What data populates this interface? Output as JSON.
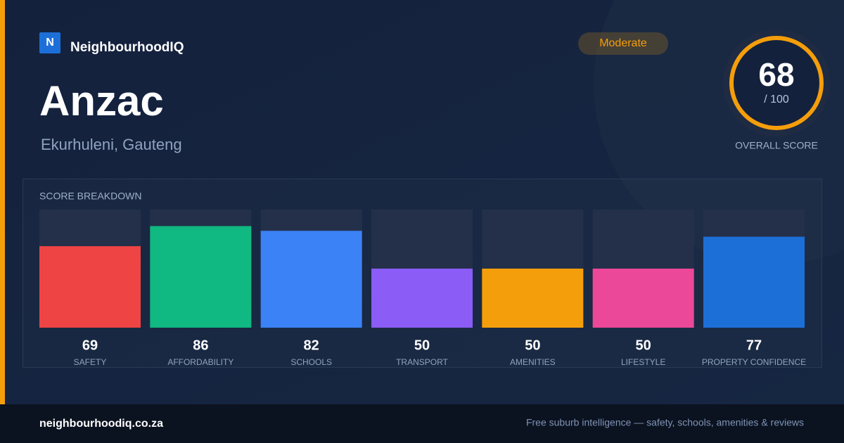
{
  "brand": {
    "logo": "N",
    "name": "NeighbourhoodIQ"
  },
  "suburb": "Anzac",
  "location": "Ekurhuleni, Gauteng",
  "rating": "Moderate",
  "overall": {
    "score": "68",
    "out_of": "/ 100",
    "label": "OVERALL SCORE"
  },
  "chart_data": {
    "type": "bar",
    "title": "SCORE BREAKDOWN",
    "categories": [
      "SAFETY",
      "AFFORDABILITY",
      "SCHOOLS",
      "TRANSPORT",
      "AMENITIES",
      "LIFESTYLE",
      "PROPERTY CONFIDENCE"
    ],
    "values": [
      69,
      86,
      82,
      50,
      50,
      50,
      77
    ],
    "colors": [
      "#ef4444",
      "#10b981",
      "#3b82f6",
      "#8b5cf6",
      "#f59e0b",
      "#ec4899",
      "#1d6fd8"
    ],
    "ylim": [
      0,
      100
    ]
  },
  "footer": {
    "url": "neighbourhoodiq.co.za",
    "tagline": "Free suburb intelligence — safety, schools, amenities & reviews"
  }
}
